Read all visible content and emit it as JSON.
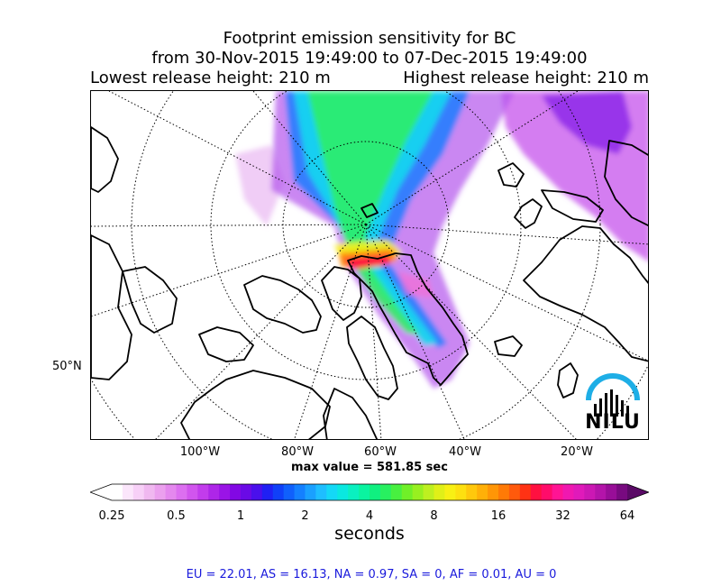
{
  "title": {
    "line1": "Footprint emission sensitivity for BC",
    "line2": "from 30-Nov-2015 19:49:00 to 07-Dec-2015 19:49:00",
    "lowest": "Lowest release height: 210 m",
    "highest": "Highest release height: 210 m"
  },
  "map": {
    "lat_label": "50°N",
    "lon_labels": [
      "100°W",
      "80°W",
      "60°W",
      "40°W",
      "20°W"
    ],
    "max_value_text": "max value = 581.85 sec",
    "logo_text": "NILU"
  },
  "colorbar": {
    "tick_labels": [
      "0.25",
      "0.5",
      "1",
      "2",
      "4",
      "8",
      "16",
      "32",
      "64"
    ],
    "units": "seconds",
    "colors": [
      "#ffffff",
      "#fbe6fb",
      "#f7d0f7",
      "#f0b8f0",
      "#eba0ee",
      "#e488ee",
      "#dc6ff0",
      "#d155ee",
      "#c23cec",
      "#ae26e8",
      "#9a14e6",
      "#8208e4",
      "#6a0ae6",
      "#4a10ec",
      "#2020f4",
      "#1040f8",
      "#1060fc",
      "#1480ff",
      "#1aa0ff",
      "#1ebeff",
      "#14d8f6",
      "#0ae8e0",
      "#0af0c0",
      "#0af4a0",
      "#10f080",
      "#28f060",
      "#48f040",
      "#70f028",
      "#98f020",
      "#bef020",
      "#e0f018",
      "#f8f014",
      "#fde010",
      "#ffc80c",
      "#ffb008",
      "#ff9606",
      "#ff7a06",
      "#ff5a0c",
      "#ff3214",
      "#ff1040",
      "#ff0c6a",
      "#ff1494",
      "#f018b0",
      "#e01aba",
      "#cc18b4",
      "#b414aa",
      "#980e98",
      "#780a80"
    ]
  },
  "regions": "EU = 22.01,  AS = 16.13,  NA = 0.97,  SA = 0,  AF = 0.01,  AU = 0"
}
